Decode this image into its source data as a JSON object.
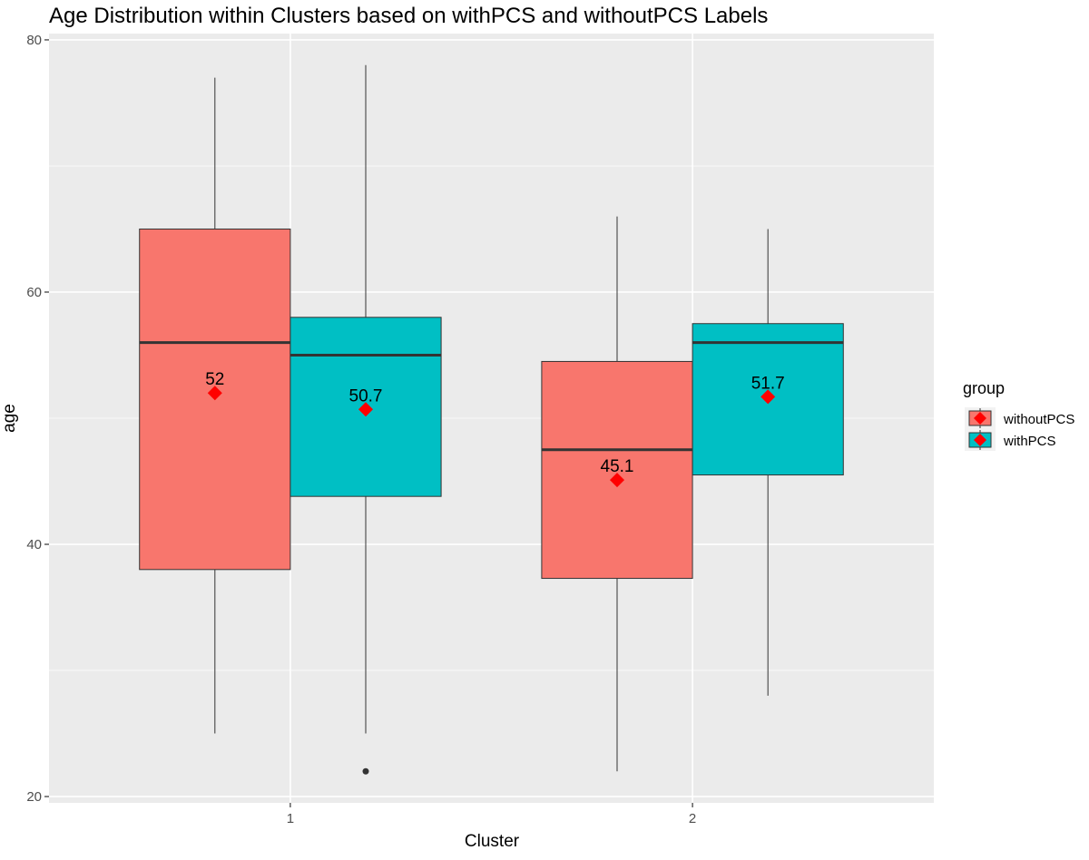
{
  "chart_data": {
    "type": "boxplot",
    "title": "Age Distribution within Clusters based on withPCS and withoutPCS Labels",
    "xlabel": "Cluster",
    "ylabel": "age",
    "categories": [
      "1",
      "2"
    ],
    "ylim": [
      19.5,
      80.5
    ],
    "yticks": [
      20,
      40,
      60,
      80
    ],
    "grid": true,
    "legend": {
      "title": "group",
      "position": "right",
      "entries": [
        "withoutPCS",
        "withPCS"
      ]
    },
    "series": [
      {
        "name": "withoutPCS",
        "color": "#F8766D",
        "boxes": [
          {
            "cluster": "1",
            "min": 25,
            "q1": 38,
            "median": 56,
            "q3": 65,
            "max": 77,
            "mean": 52,
            "mean_label": "52",
            "outliers": []
          },
          {
            "cluster": "2",
            "min": 22,
            "q1": 37.3,
            "median": 47.5,
            "q3": 54.5,
            "max": 66,
            "mean": 45.1,
            "mean_label": "45.1",
            "outliers": []
          }
        ]
      },
      {
        "name": "withPCS",
        "color": "#00BFC4",
        "boxes": [
          {
            "cluster": "1",
            "min": 25,
            "q1": 43.8,
            "median": 55,
            "q3": 58,
            "max": 78,
            "mean": 50.7,
            "mean_label": "50.7",
            "outliers": [
              22
            ]
          },
          {
            "cluster": "2",
            "min": 28,
            "q1": 45.5,
            "median": 56,
            "q3": 57.5,
            "max": 65,
            "mean": 51.7,
            "mean_label": "51.7",
            "outliers": []
          }
        ]
      }
    ],
    "mean_marker_color": "#FF0000",
    "panel_color": "#EBEBEB"
  }
}
